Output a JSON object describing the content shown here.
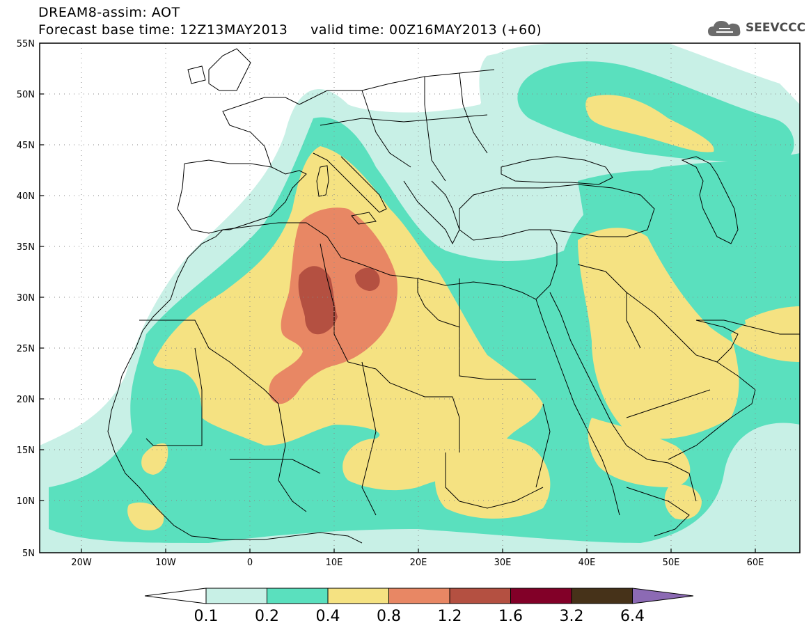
{
  "header": {
    "line1": "DREAM8-assim: AOT",
    "line2": "Forecast base time: 12Z13MAY2013     valid time: 00Z16MAY2013 (+60)"
  },
  "logo": {
    "text": "SEEVCCC",
    "icon": "cloud-icon",
    "color": "#4b4b4b"
  },
  "axes": {
    "lat_labels": [
      "55N",
      "50N",
      "45N",
      "40N",
      "35N",
      "30N",
      "25N",
      "20N",
      "15N",
      "10N",
      "5N"
    ],
    "lon_labels": [
      "20W",
      "10W",
      "0",
      "10E",
      "20E",
      "30E",
      "40E",
      "50E",
      "60E"
    ],
    "lat_range": [
      5,
      55
    ],
    "lon_range": [
      -25,
      65
    ],
    "grid": "dotted"
  },
  "colorbar": {
    "labels": [
      "0.1",
      "0.2",
      "0.4",
      "0.8",
      "1.2",
      "1.6",
      "3.2",
      "6.4"
    ],
    "colors": [
      "#ffffff",
      "#c8f0e6",
      "#5ae0be",
      "#f5e282",
      "#e88764",
      "#b45041",
      "#820028",
      "#463219",
      "#8c6ab4"
    ]
  },
  "legend_colors": {
    "lt01": "#ffffff",
    "b01_02": "#c8f0e6",
    "b02_04": "#5ae0be",
    "b04_08": "#f5e282",
    "b08_12": "#e88764",
    "b12_16": "#b45041"
  }
}
